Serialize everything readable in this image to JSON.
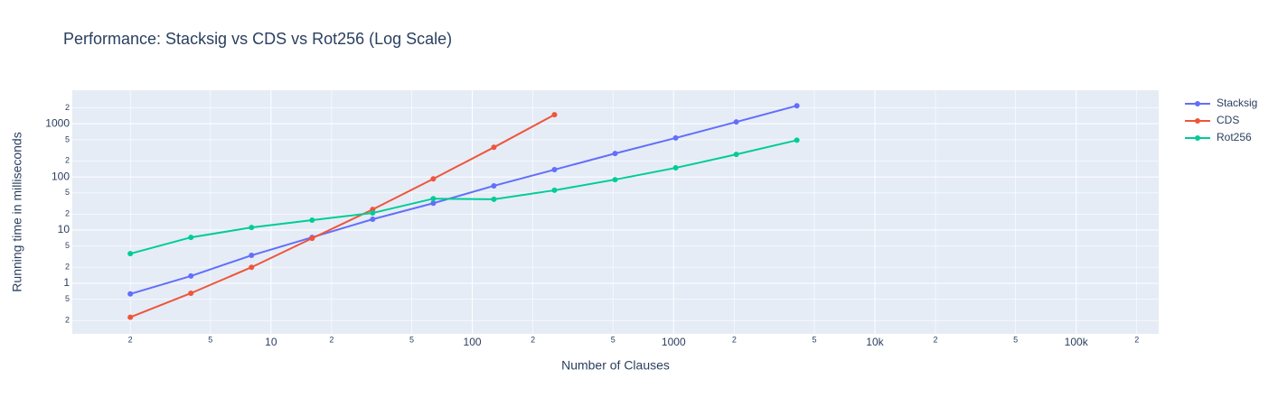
{
  "chart_data": {
    "type": "line",
    "title": "Performance: Stacksig vs CDS vs Rot256 (Log Scale)",
    "x_label": "Number of Clauses",
    "y_label": "Running time in milliseconds",
    "x": [
      2,
      4,
      8,
      16,
      32,
      64,
      128,
      256,
      512,
      1024,
      2048,
      4096
    ],
    "series": [
      {
        "name": "Stacksig",
        "color": "#636efa",
        "values": [
          0.63,
          1.37,
          3.35,
          7.3,
          16,
          32,
          68,
          137,
          276,
          540,
          1080,
          2180
        ]
      },
      {
        "name": "CDS",
        "color": "#ef553b",
        "values": [
          0.23,
          0.65,
          2.0,
          7.0,
          24.5,
          92,
          360,
          1480,
          null,
          null,
          null,
          null
        ]
      },
      {
        "name": "Rot256",
        "color": "#00cc96",
        "values": [
          3.6,
          7.3,
          11.2,
          15.4,
          21,
          39,
          38,
          56,
          89,
          148,
          265,
          490
        ]
      }
    ],
    "log_x": true,
    "log_y": true,
    "grid": true,
    "legend": "outside-right",
    "xlim": [
      1.03,
      257000
    ],
    "ylim": [
      0.112,
      4270
    ],
    "xticks": [
      2,
      5,
      10,
      {
        "value": 20,
        "label": "2"
      },
      {
        "value": 50,
        "label": "5"
      },
      100,
      {
        "value": 200,
        "label": "2"
      },
      {
        "value": 500,
        "label": "5"
      },
      1000,
      {
        "value": 2000,
        "label": "2"
      },
      {
        "value": 5000,
        "label": "5"
      },
      {
        "value": 10000,
        "label": "10k"
      },
      {
        "value": 20000,
        "label": "2"
      },
      {
        "value": 50000,
        "label": "5"
      },
      {
        "value": 100000,
        "label": "100k"
      },
      {
        "value": 200000,
        "label": "2"
      }
    ],
    "yticks": [
      {
        "value": 0.2,
        "label": "2"
      },
      {
        "value": 0.5,
        "label": "5"
      },
      1,
      2,
      5,
      10,
      {
        "value": 20,
        "label": "2"
      },
      {
        "value": 50,
        "label": "5"
      },
      100,
      {
        "value": 200,
        "label": "2"
      },
      {
        "value": 500,
        "label": "5"
      },
      1000,
      {
        "value": 2000,
        "label": "2"
      }
    ]
  }
}
